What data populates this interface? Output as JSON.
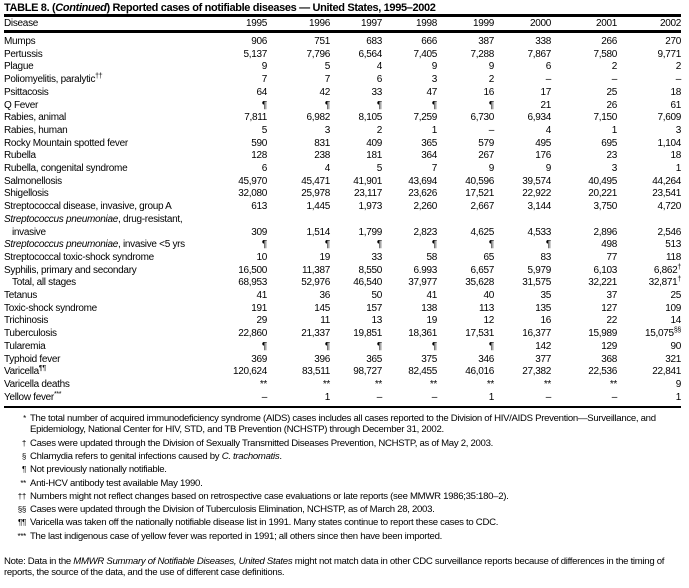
{
  "title": {
    "prefix": "TABLE 8. (",
    "italic": "Continued",
    "suffix": ") Reported cases of notifiable diseases — United States, 1995–2002"
  },
  "columns": [
    "Disease",
    "1995",
    "1996",
    "1997",
    "1998",
    "1999",
    "2000",
    "2001",
    "2002"
  ],
  "rows": [
    {
      "name": "Mumps",
      "values": [
        "906",
        "751",
        "683",
        "666",
        "387",
        "338",
        "266",
        "270"
      ]
    },
    {
      "name": "Pertussis",
      "values": [
        "5,137",
        "7,796",
        "6,564",
        "7,405",
        "7,288",
        "7,867",
        "7,580",
        "9,771"
      ]
    },
    {
      "name": "Plague",
      "values": [
        "9",
        "5",
        "4",
        "9",
        "9",
        "6",
        "2",
        "2"
      ]
    },
    {
      "name": "Poliomyelitis, paralytic",
      "name_sup": "††",
      "values": [
        "7",
        "7",
        "6",
        "3",
        "2",
        "–",
        "–",
        "–"
      ]
    },
    {
      "name": "Psittacosis",
      "values": [
        "64",
        "42",
        "33",
        "47",
        "16",
        "17",
        "25",
        "18"
      ]
    },
    {
      "name": "Q Fever",
      "values": [
        "¶",
        "¶",
        "¶",
        "¶",
        "¶",
        "21",
        "26",
        "61"
      ]
    },
    {
      "name": "Rabies, animal",
      "values": [
        "7,811",
        "6,982",
        "8,105",
        "7,259",
        "6,730",
        "6,934",
        "7,150",
        "7,609"
      ]
    },
    {
      "name": "Rabies, human",
      "values": [
        "5",
        "3",
        "2",
        "1",
        "–",
        "4",
        "1",
        "3"
      ]
    },
    {
      "name": "Rocky Mountain spotted fever",
      "values": [
        "590",
        "831",
        "409",
        "365",
        "579",
        "495",
        "695",
        "1,104"
      ]
    },
    {
      "name": "Rubella",
      "values": [
        "128",
        "238",
        "181",
        "364",
        "267",
        "176",
        "23",
        "18"
      ]
    },
    {
      "name": "Rubella, congenital syndrome",
      "values": [
        "6",
        "4",
        "5",
        "7",
        "9",
        "9",
        "3",
        "1"
      ]
    },
    {
      "name": "Salmonellosis",
      "values": [
        "45,970",
        "45,471",
        "41,901",
        "43,694",
        "40,596",
        "39,574",
        "40,495",
        "44,264"
      ]
    },
    {
      "name": "Shigellosis",
      "values": [
        "32,080",
        "25,978",
        "23,117",
        "23,626",
        "17,521",
        "22,922",
        "20,221",
        "23,541"
      ]
    },
    {
      "name": "Streptococcal disease, invasive, group A",
      "values": [
        "613",
        "1,445",
        "1,973",
        "2,260",
        "2,667",
        "3,144",
        "3,750",
        "4,720"
      ]
    },
    {
      "name_italic": "Streptococcus pneumoniae",
      "name": ", drug-resistant,",
      "values": []
    },
    {
      "name": "invasive",
      "indent": true,
      "values": [
        "309",
        "1,514",
        "1,799",
        "2,823",
        "4,625",
        "4,533",
        "2,896",
        "2,546"
      ]
    },
    {
      "name_italic": "Streptococcus pneumoniae",
      "name": ", invasive <5 yrs",
      "values": [
        "¶",
        "¶",
        "¶",
        "¶",
        "¶",
        "¶",
        "498",
        "513"
      ]
    },
    {
      "name": "Streptococcal toxic-shock syndrome",
      "values": [
        "10",
        "19",
        "33",
        "58",
        "65",
        "83",
        "77",
        "118"
      ]
    },
    {
      "name": "Syphilis, primary and secondary",
      "values": [
        "16,500",
        "11,387",
        "8,550",
        "6.993",
        "6,657",
        "5,979",
        "6,103",
        "6,862"
      ],
      "value_sups": [
        "",
        "",
        "",
        "",
        "",
        "",
        "",
        "†"
      ]
    },
    {
      "name": "Total, all stages",
      "indent": true,
      "values": [
        "68,953",
        "52,976",
        "46,540",
        "37,977",
        "35,628",
        "31,575",
        "32,221",
        "32,871"
      ],
      "value_sups": [
        "",
        "",
        "",
        "",
        "",
        "",
        "",
        "†"
      ]
    },
    {
      "name": "Tetanus",
      "values": [
        "41",
        "36",
        "50",
        "41",
        "40",
        "35",
        "37",
        "25"
      ]
    },
    {
      "name": "Toxic-shock syndrome",
      "values": [
        "191",
        "145",
        "157",
        "138",
        "113",
        "135",
        "127",
        "109"
      ]
    },
    {
      "name": "Trichinosis",
      "values": [
        "29",
        "11",
        "13",
        "19",
        "12",
        "16",
        "22",
        "14"
      ]
    },
    {
      "name": "Tuberculosis",
      "values": [
        "22,860",
        "21,337",
        "19,851",
        "18,361",
        "17,531",
        "16,377",
        "15,989",
        "15,075"
      ],
      "value_sups": [
        "",
        "",
        "",
        "",
        "",
        "",
        "",
        "§§"
      ]
    },
    {
      "name": "Tularemia",
      "values": [
        "¶",
        "¶",
        "¶",
        "¶",
        "¶",
        "142",
        "129",
        "90"
      ]
    },
    {
      "name": "Typhoid fever",
      "values": [
        "369",
        "396",
        "365",
        "375",
        "346",
        "377",
        "368",
        "321"
      ]
    },
    {
      "name": "Varicella",
      "name_sup": "¶¶",
      "values": [
        "120,624",
        "83,511",
        "98,727",
        "82,455",
        "46,016",
        "27,382",
        "22,536",
        "22,841"
      ]
    },
    {
      "name": "Varicella deaths",
      "values": [
        "**",
        "**",
        "**",
        "**",
        "**",
        "**",
        "**",
        "9"
      ]
    },
    {
      "name": "Yellow fever",
      "name_sup": "***",
      "values": [
        "–",
        "1",
        "–",
        "–",
        "1",
        "–",
        "–",
        "1"
      ]
    }
  ],
  "footnotes": [
    {
      "symbol": "*",
      "pre": "The total number of acquired immunodeficiency syndrome (AIDS) cases includes all cases reported to the Division of HIV/AIDS Prevention—Surveillance, and Epidemiology, National Center for HIV, STD, and TB Prevention (NCHSTP) through December 31, 2002."
    },
    {
      "symbol": "†",
      "pre": "Cases were updated through the Division of Sexually Transmitted Diseases Prevention, NCHSTP, as of  May 2, 2003."
    },
    {
      "symbol": "§",
      "pre": "Chlamydia refers to genital infections caused by ",
      "italic": "C. trachomatis",
      "post": "."
    },
    {
      "symbol": "¶",
      "pre": "Not previously nationally notifiable."
    },
    {
      "symbol": "**",
      "pre": "Anti-HCV antibody test available May 1990."
    },
    {
      "symbol": "††",
      "pre": "Numbers might not reflect changes based on retrospective case evaluations or late reports (see MMWR 1986;35:180–2)."
    },
    {
      "symbol": "§§",
      "pre": "Cases were updated through the Division of Tuberculosis Elimination, NCHSTP, as of March 28, 2003."
    },
    {
      "symbol": "¶¶",
      "pre": "Varicella was taken off the nationally notifiable disease list in 1991.  Many states continue to report these cases to CDC."
    },
    {
      "symbol": "***",
      "pre": "The last indigenous case of yellow fever was reported in 1991; all others since then have been imported."
    }
  ],
  "note": {
    "pre": "Note: Data in the ",
    "italic": "MMWR Summary of Notifiable Diseases, United States",
    "post": " might not match data in other CDC surveillance reports because of differences in the timing of reports, the source of the data, and the use of different case definitions."
  }
}
